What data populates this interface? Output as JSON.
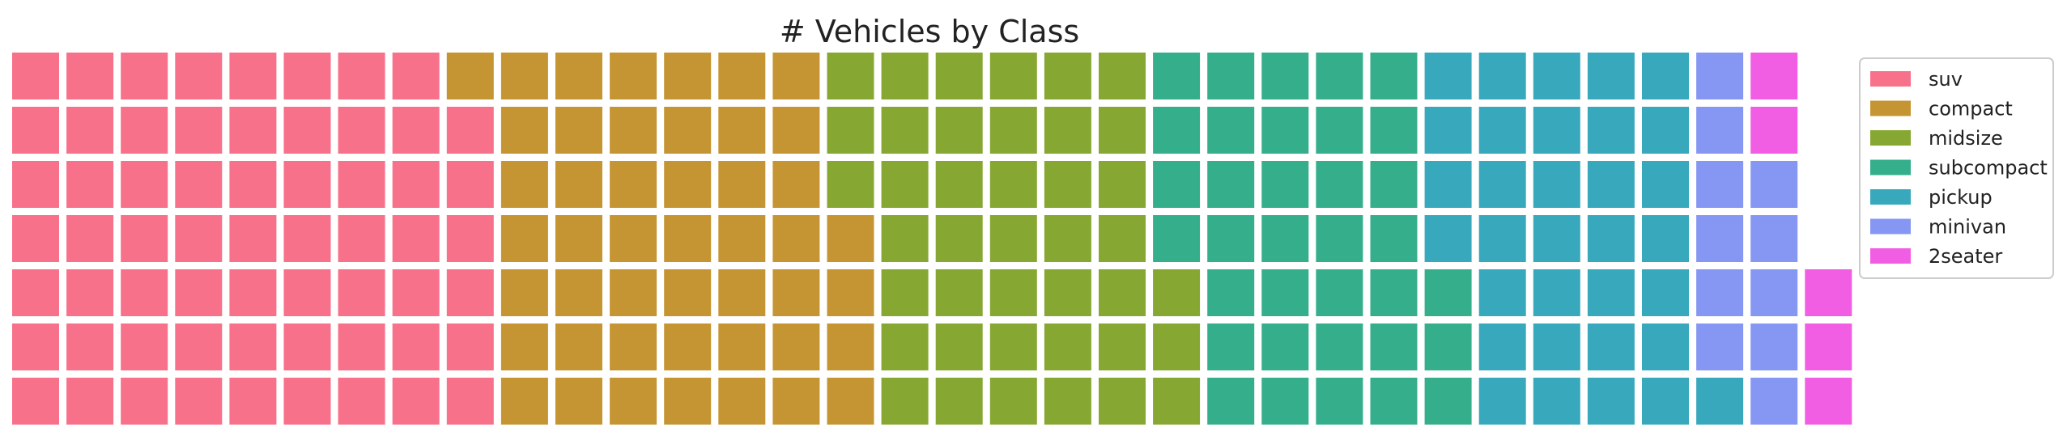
{
  "chart_data": {
    "type": "waffle",
    "title": "# Vehicles by Class",
    "rows": 7,
    "fill_order": "column-major, bottom-to-top",
    "legend_position": "right",
    "series": [
      {
        "name": "suv",
        "value": 62,
        "color": "#f7718a"
      },
      {
        "name": "compact",
        "value": 47,
        "color": "#c69533"
      },
      {
        "name": "midsize",
        "value": 41,
        "color": "#86a832"
      },
      {
        "name": "subcompact",
        "value": 35,
        "color": "#35ae8c"
      },
      {
        "name": "pickup",
        "value": 33,
        "color": "#38a9bd"
      },
      {
        "name": "minivan",
        "value": 11,
        "color": "#8597f3"
      },
      {
        "name": "2seater",
        "value": 5,
        "color": "#f15ee3"
      }
    ]
  }
}
